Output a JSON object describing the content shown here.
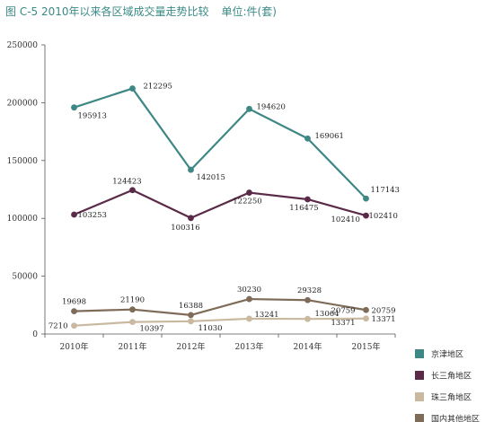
{
  "title": "图 C-5  2010年以来各区域成交量走势比较",
  "unit": "单位:件(套)",
  "chart_data": {
    "type": "line",
    "categories": [
      "2010年",
      "2011年",
      "2012年",
      "2013年",
      "2014年",
      "2015年"
    ],
    "ylim": [
      0,
      250000
    ],
    "yticks": [
      0,
      50000,
      100000,
      150000,
      200000,
      250000
    ],
    "grid": false,
    "legend_position": "bottom-right",
    "series": [
      {
        "name": "京津地区",
        "color": "#3d8785",
        "values": [
          195913,
          212295,
          142015,
          194620,
          169061,
          117143
        ]
      },
      {
        "name": "长三角地区",
        "color": "#5a2a48",
        "values": [
          103253,
          124423,
          100316,
          122250,
          116475,
          102410
        ]
      },
      {
        "name": "珠三角地区",
        "color": "#c9b9a0",
        "values": [
          7210,
          10397,
          11030,
          13241,
          13064,
          13371
        ]
      },
      {
        "name": "国内其他地区",
        "color": "#7e6b58",
        "values": [
          19698,
          21190,
          16388,
          30230,
          29328,
          20759
        ]
      }
    ],
    "annotations": [
      {
        "text": "20759",
        "x": "2014年",
        "y": 20759
      },
      {
        "text": "102410",
        "x": "2014年",
        "y": 102410
      },
      {
        "text": "13371",
        "x": "2014年",
        "y": 13371
      }
    ]
  }
}
